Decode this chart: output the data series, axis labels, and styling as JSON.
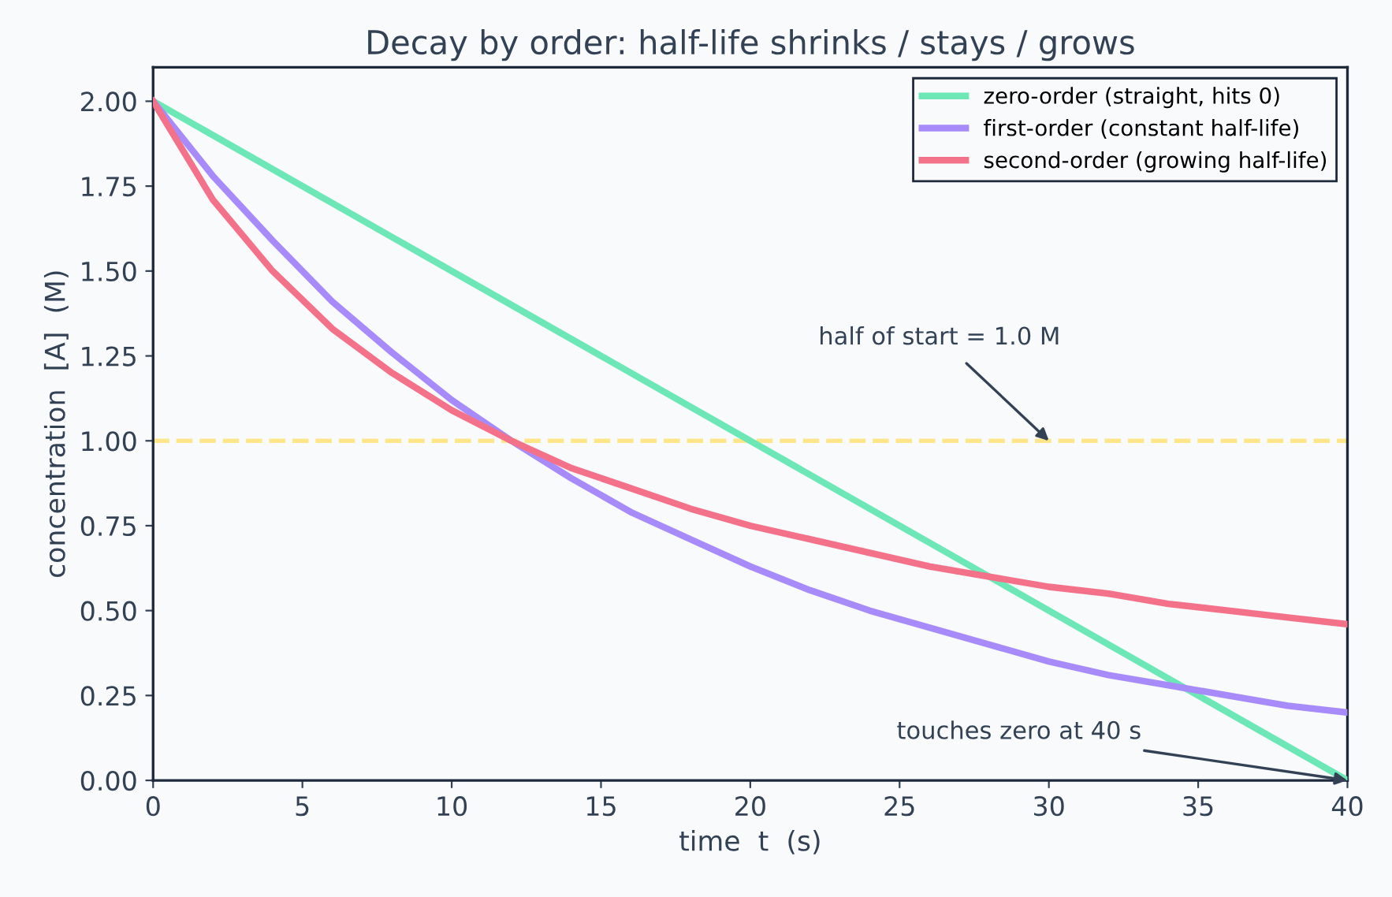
{
  "chart_data": {
    "type": "line",
    "title": "Decay by order: half-life shrinks / stays / grows",
    "xlabel": "time  t  (s)",
    "ylabel": "concentration  [A]  (M)",
    "xlim": [
      0,
      40
    ],
    "xticks": [
      0,
      5,
      10,
      15,
      20,
      25,
      30,
      35,
      40
    ],
    "ylim": [
      0,
      2.1
    ],
    "yticks": [
      {
        "value": 0,
        "label": "0.00"
      },
      {
        "value": 0.25,
        "label": "0.25"
      },
      {
        "value": 0.5,
        "label": "0.50"
      },
      {
        "value": 0.75,
        "label": "0.75"
      },
      {
        "value": 1.0,
        "label": "1.00"
      },
      {
        "value": 1.25,
        "label": "1.25"
      },
      {
        "value": 1.5,
        "label": "1.50"
      },
      {
        "value": 1.75,
        "label": "1.75"
      },
      {
        "value": 2.0,
        "label": "2.00"
      }
    ],
    "grid": false,
    "legend": "top right",
    "marker": "none",
    "line_style": "solid",
    "series": [
      {
        "name": "zero-order (straight, hits 0)",
        "color": "#6ee7b7",
        "x": [
          0,
          40
        ],
        "values": [
          2.0,
          0.0
        ]
      },
      {
        "name": "first-order (constant half-life)",
        "color": "#a78bfa",
        "x": [
          0,
          2,
          4,
          6,
          8,
          10,
          12,
          14,
          16,
          18,
          20,
          22,
          24,
          26,
          28,
          30,
          32,
          34,
          36,
          38,
          40
        ],
        "values": [
          2.0,
          1.78,
          1.59,
          1.41,
          1.26,
          1.12,
          1.0,
          0.89,
          0.79,
          0.71,
          0.63,
          0.56,
          0.5,
          0.45,
          0.4,
          0.35,
          0.31,
          0.28,
          0.25,
          0.22,
          0.2
        ]
      },
      {
        "name": "second-order (growing half-life)",
        "color": "#f4718a",
        "x": [
          0,
          2,
          4,
          6,
          8,
          10,
          12,
          14,
          16,
          18,
          20,
          22,
          24,
          26,
          28,
          30,
          32,
          34,
          36,
          38,
          40
        ],
        "values": [
          2.0,
          1.71,
          1.5,
          1.33,
          1.2,
          1.09,
          1.0,
          0.92,
          0.86,
          0.8,
          0.75,
          0.71,
          0.67,
          0.63,
          0.6,
          0.57,
          0.55,
          0.52,
          0.5,
          0.48,
          0.46
        ]
      }
    ],
    "ref_lines": [
      {
        "axis": "y",
        "value": 1.0,
        "color": "#fde68a",
        "line_style": "dashed"
      }
    ],
    "annotations": [
      {
        "text": "half of start = 1.0 M",
        "x": 30,
        "y": 1.0
      },
      {
        "text": "touches zero at 40 s",
        "x": 40,
        "y": 0.0
      }
    ]
  }
}
